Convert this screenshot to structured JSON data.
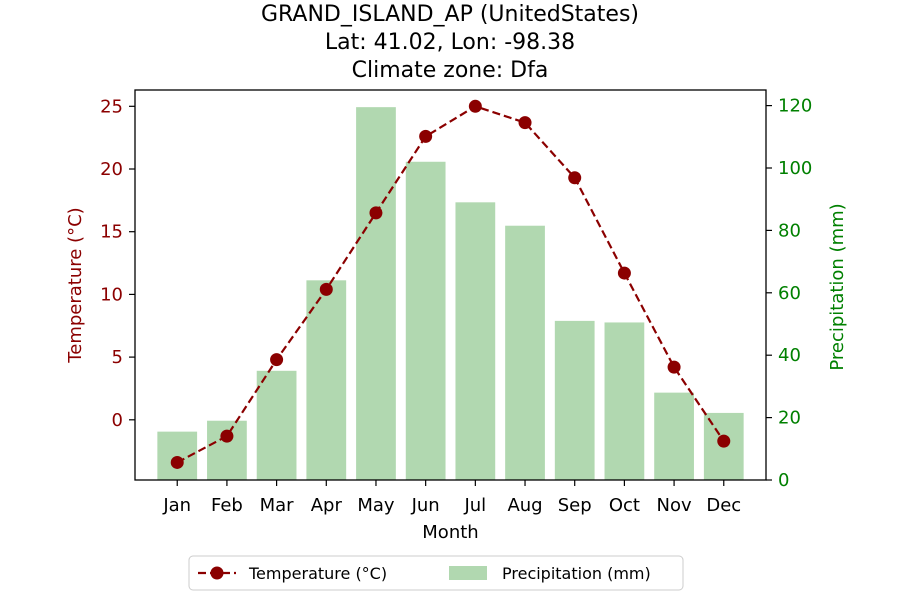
{
  "chart_data": {
    "type": "bar+line",
    "title": [
      "GRAND_ISLAND_AP (UnitedStates)",
      "Lat: 41.02, Lon: -98.38",
      "Climate zone: Dfa"
    ],
    "categories": [
      "Jan",
      "Feb",
      "Mar",
      "Apr",
      "May",
      "Jun",
      "Jul",
      "Aug",
      "Sep",
      "Oct",
      "Nov",
      "Dec"
    ],
    "xlabel": "Month",
    "ylabel_left": "Temperature (°C)",
    "ylabel_right": "Precipitation (mm)",
    "ylim_left": [
      -4.8,
      26.3
    ],
    "ylim_right": [
      0,
      125
    ],
    "yticks_left": [
      0,
      5,
      10,
      15,
      20,
      25
    ],
    "yticks_right": [
      0,
      20,
      40,
      60,
      80,
      100,
      120
    ],
    "series": [
      {
        "name": "Temperature (°C)",
        "type": "line",
        "axis": "left",
        "style": "dashed-with-circle-markers",
        "color": "#8b0000",
        "values": [
          -3.4,
          -1.3,
          4.8,
          10.4,
          16.5,
          22.6,
          25.0,
          23.7,
          19.3,
          11.7,
          4.2,
          -1.7
        ]
      },
      {
        "name": "Precipitation (mm)",
        "type": "bar",
        "axis": "right",
        "color": "#b1d8b0",
        "values": [
          15.5,
          19.0,
          35.0,
          64.0,
          119.5,
          102.0,
          89.0,
          81.5,
          51.0,
          50.5,
          28.0,
          21.5
        ]
      }
    ],
    "left_axis_color": "#8b0000",
    "right_axis_color": "#008000",
    "legend_placement": "bottom-center",
    "grid": false
  }
}
